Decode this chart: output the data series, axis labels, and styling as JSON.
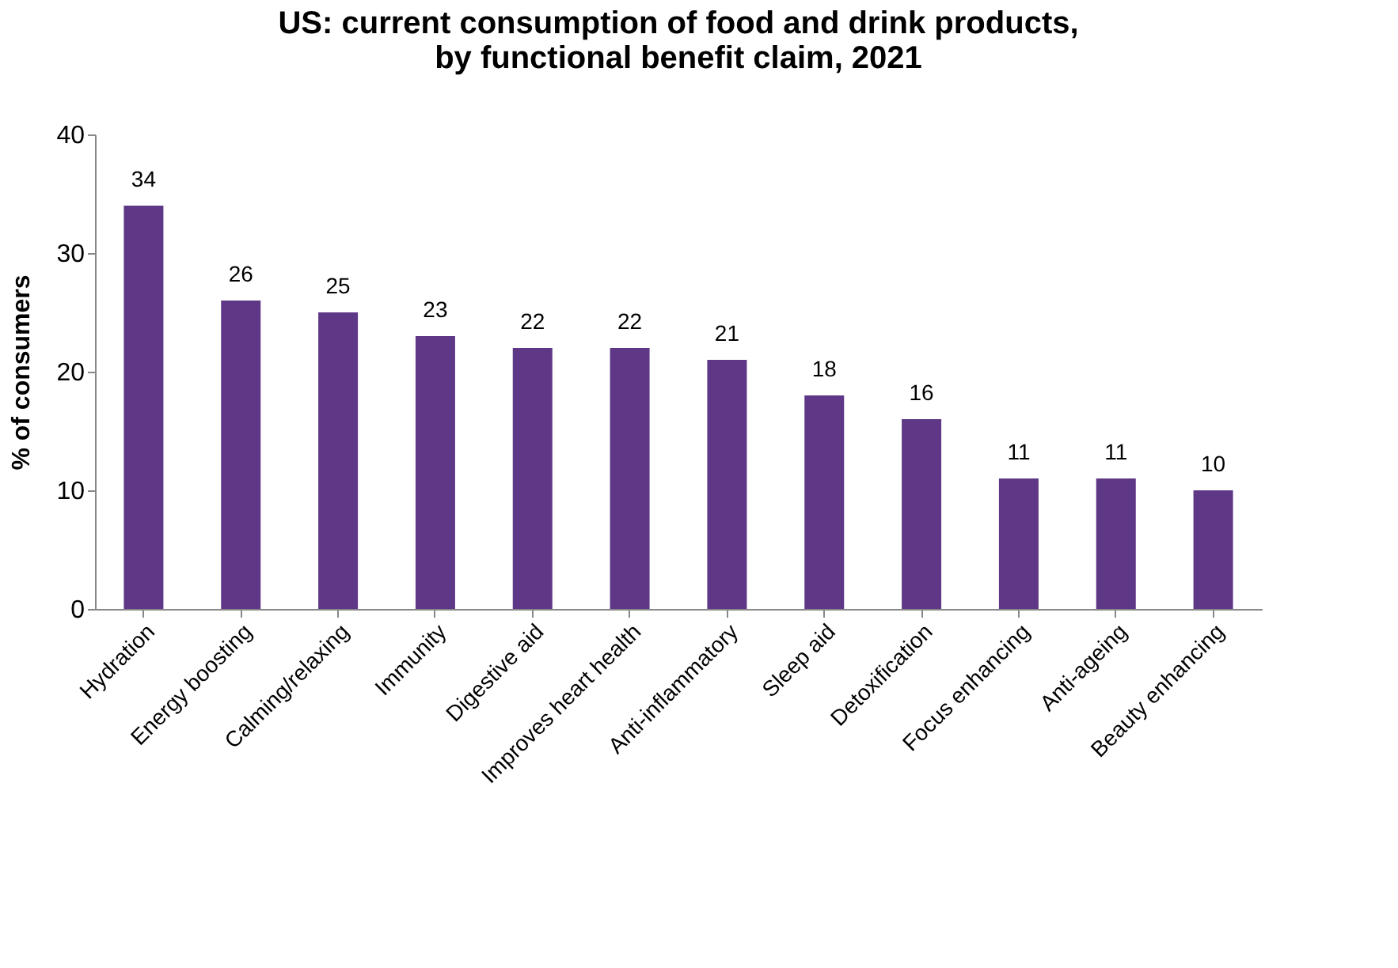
{
  "chart_data": {
    "type": "bar",
    "title": "US: current consumption of food and drink products,\nby functional benefit claim, 2021",
    "ylabel": "% of consumers",
    "categories": [
      "Hydration",
      "Energy boosting",
      "Calming/relaxing",
      "Immunity",
      "Digestive aid",
      "Improves heart health",
      "Anti-inflammatory",
      "Sleep aid",
      "Detoxification",
      "Focus enhancing",
      "Anti-ageing",
      "Beauty enhancing"
    ],
    "values": [
      34,
      26,
      25,
      23,
      22,
      22,
      21,
      18,
      16,
      11,
      11,
      10
    ],
    "color": "#5f3787",
    "ylim": [
      0,
      40
    ],
    "yticks": [
      0,
      10,
      20,
      30,
      40
    ],
    "grid": false,
    "data_labels": true
  }
}
